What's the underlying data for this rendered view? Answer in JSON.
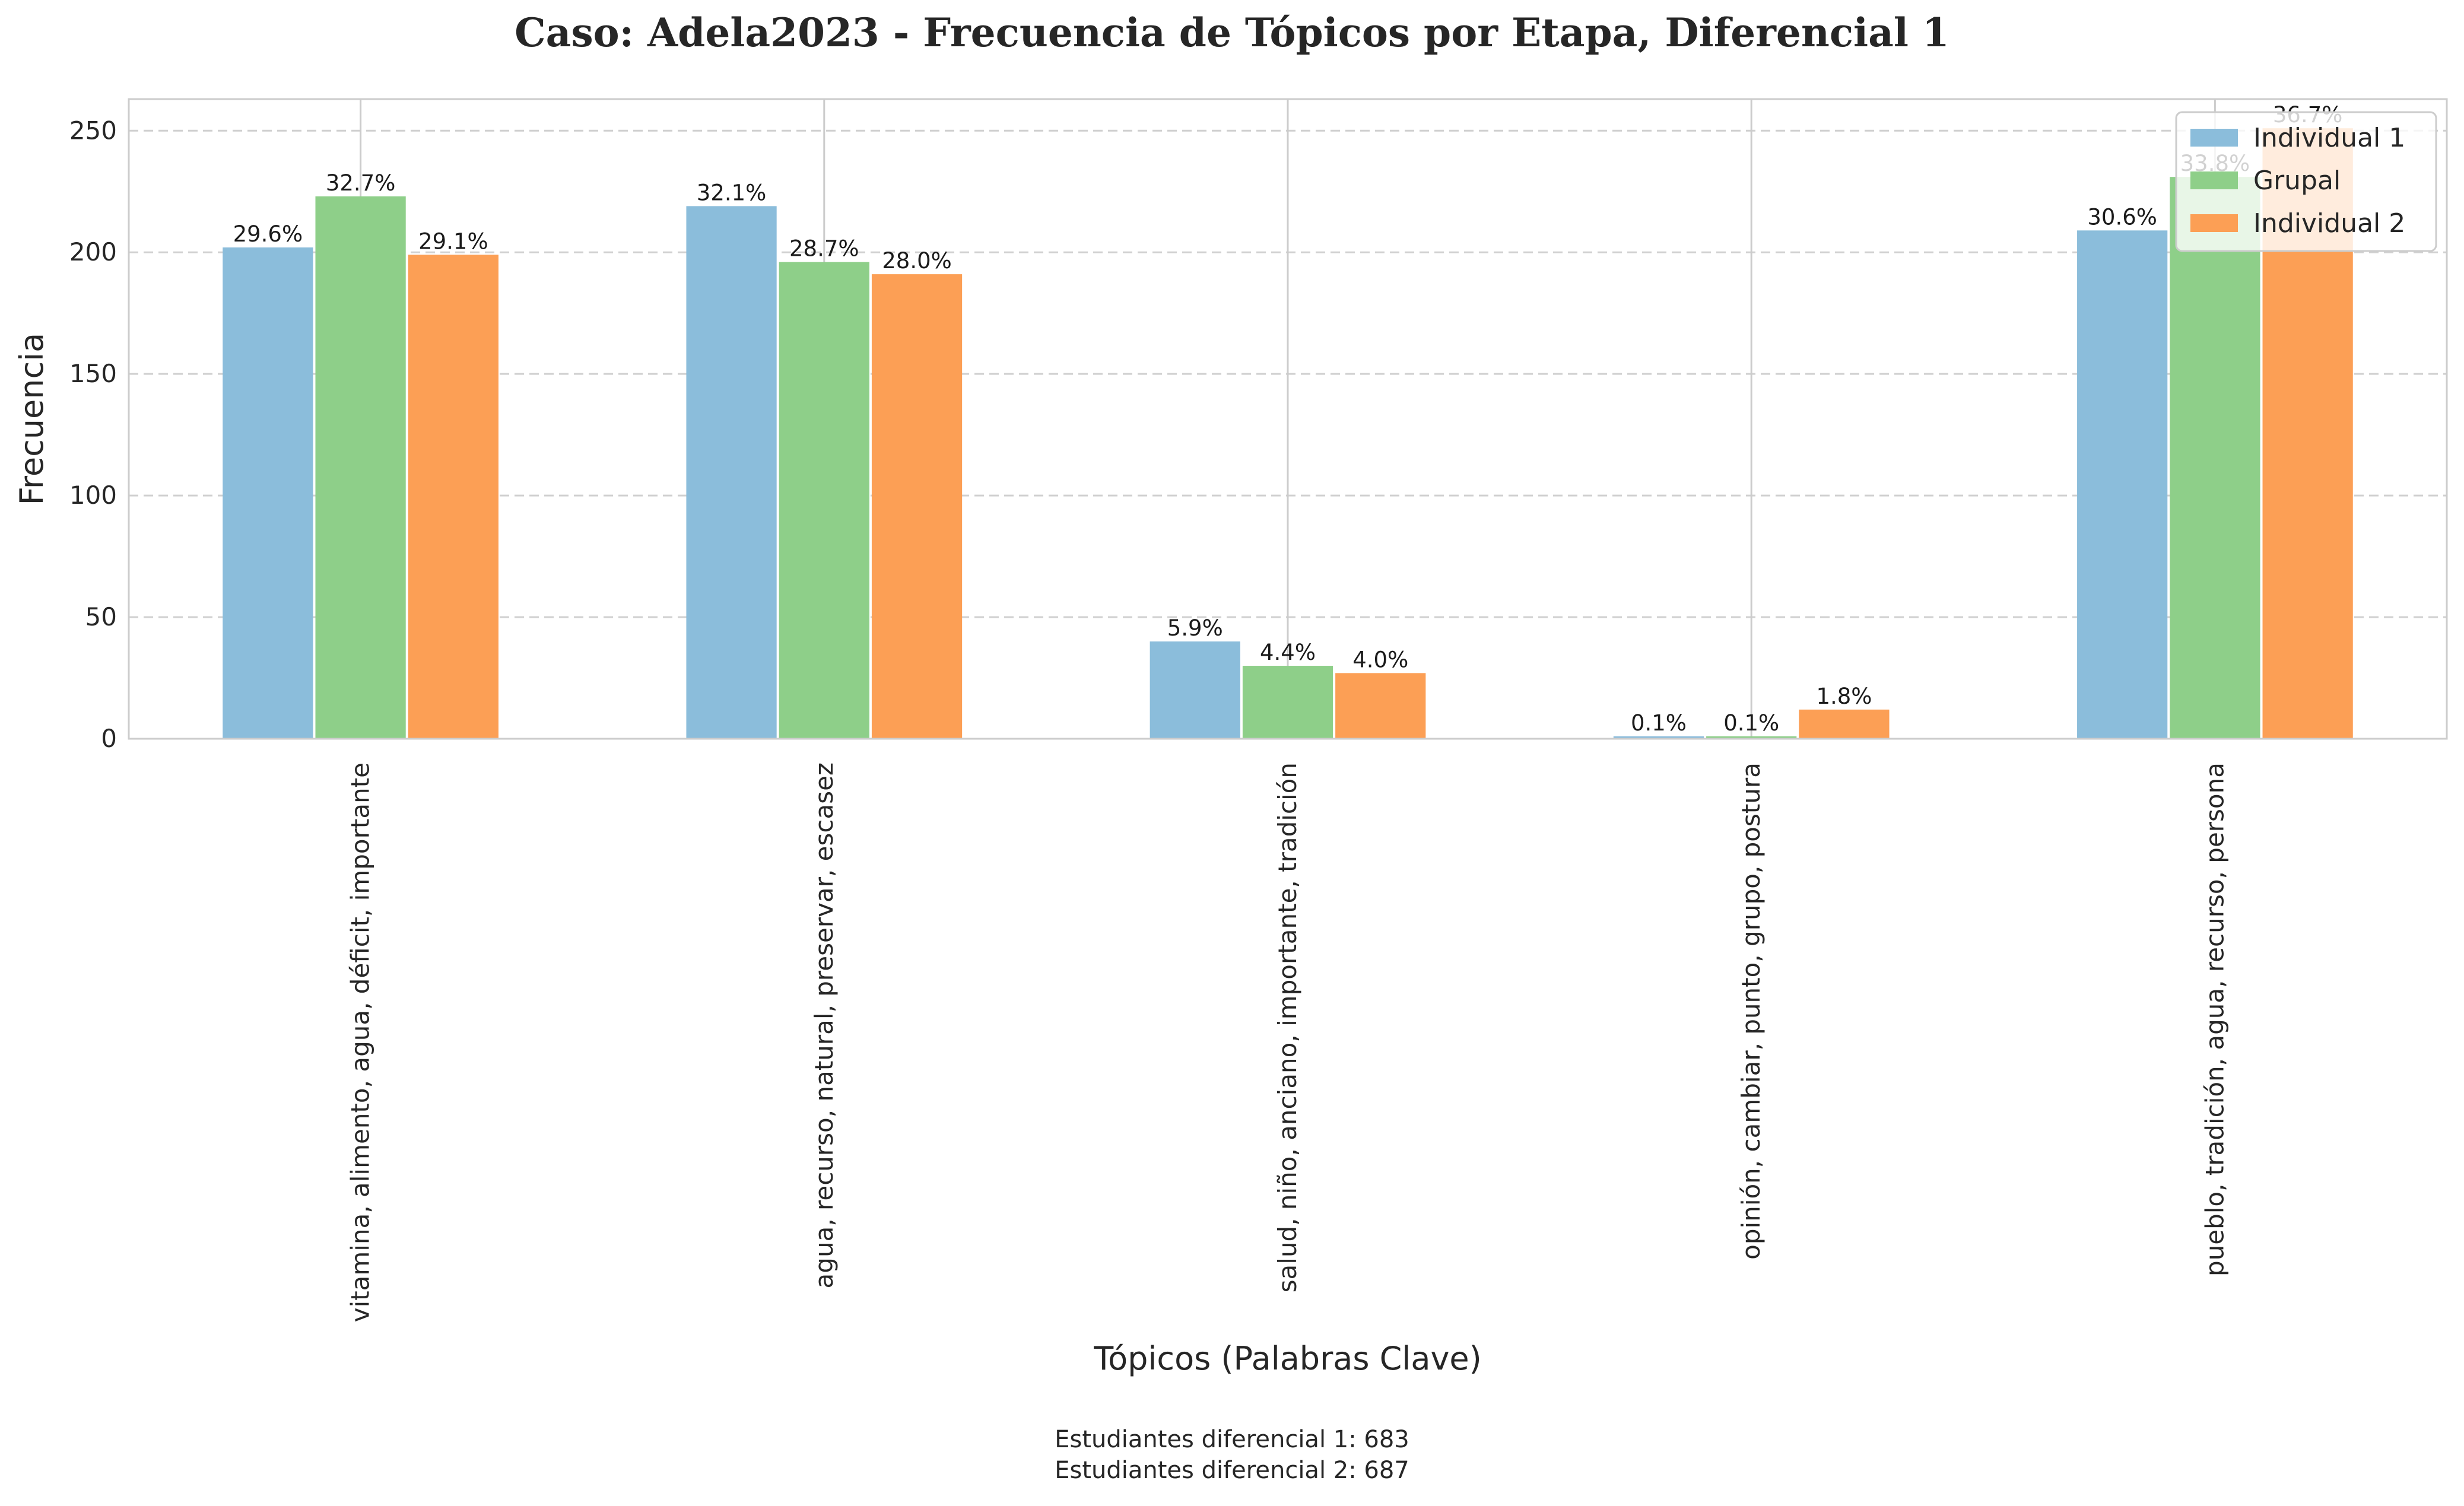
{
  "chart_data": {
    "type": "bar",
    "title": "Caso: Adela2023 - Frecuencia de Tópicos por Etapa, Diferencial 1",
    "xlabel": "Tópicos (Palabras Clave)",
    "ylabel": "Frecuencia",
    "ylim": [
      0,
      263
    ],
    "yticks": [
      0,
      50,
      100,
      150,
      200,
      250
    ],
    "grid": true,
    "legend_position": "top-right",
    "categories": [
      "vitamina, alimento, agua, déficit, importante",
      "agua, recurso, natural, preservar, escasez",
      "salud, niño, anciano, importante, tradición",
      "opinión, cambiar, punto, grupo, postura",
      "pueblo, tradición, agua, recurso, persona"
    ],
    "series": [
      {
        "name": "Individual 1",
        "color": "#8bbddb",
        "values": [
          202,
          219,
          40,
          1,
          209
        ],
        "labels": [
          "29.6%",
          "32.1%",
          "5.9%",
          "0.1%",
          "30.6%"
        ]
      },
      {
        "name": "Grupal",
        "color": "#8ecf89",
        "values": [
          223,
          196,
          30,
          1,
          231
        ],
        "labels": [
          "32.7%",
          "28.7%",
          "4.4%",
          "0.1%",
          "33.8%"
        ]
      },
      {
        "name": "Individual 2",
        "color": "#fc9f55",
        "values": [
          199,
          191,
          27,
          12,
          251
        ],
        "labels": [
          "29.1%",
          "28.0%",
          "4.0%",
          "1.8%",
          "36.7%"
        ]
      }
    ]
  },
  "footnote": {
    "line1": "Estudiantes diferencial 1: 683",
    "line2": "Estudiantes diferencial 2: 687"
  }
}
